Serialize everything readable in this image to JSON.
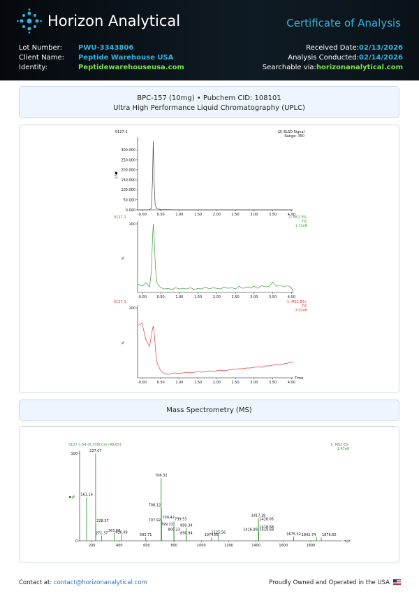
{
  "header": {
    "brand": "Horizon Analytical",
    "doc_title": "Certificate of Analysis"
  },
  "info": {
    "lot_label": "Lot Number:",
    "lot": "PWU-3343806",
    "client_label": "Client Name:",
    "client": "Peptide Warehouse USA",
    "identity_label": "Identity:",
    "identity": "Peptidewarehouseusa.com",
    "received_label": "Received Date:",
    "received": "02/13/2026",
    "conducted_label": "Analysis Conducted:",
    "conducted": "02/14/2026",
    "searchable_label": "Searchable via:",
    "searchable": "horizonanalytical.com"
  },
  "uplc": {
    "line1": "BPC-157 (10mg) • Pubchem CID: 108101",
    "line2": "Ultra High Performance Liquid Chromatography (UPLC)"
  },
  "ms_section": {
    "title": "Mass Spectrometry (MS)"
  },
  "footer": {
    "contact_label": "Contact at:",
    "email": "contact@horizonanalytical.com",
    "made": "Proudly Owned and Operated in the USA"
  },
  "chart_data": [
    {
      "type": "line",
      "title": "0127-1",
      "annotations": [
        "(2) ELSD Signal",
        "Range: 350"
      ],
      "y_label": "LSU",
      "color": "#444444",
      "x": [
        -0.1,
        0,
        0.1,
        0.2,
        0.25,
        0.28,
        0.3,
        0.32,
        0.35,
        0.4,
        0.5,
        1.0,
        1.5,
        2.0,
        2.5,
        3.0,
        3.5,
        4.0
      ],
      "values": [
        0,
        0,
        0,
        1,
        8,
        150,
        345,
        160,
        25,
        6,
        2,
        0,
        0,
        0,
        0,
        0,
        0,
        0
      ],
      "xlim": [
        -0.12,
        4.05
      ],
      "ylim": [
        0,
        350
      ],
      "xticks": [
        {
          "value": 0,
          "label": "-0.00"
        },
        {
          "value": 0.5,
          "label": "0.50"
        },
        {
          "value": 1,
          "label": "1.00"
        },
        {
          "value": 1.5,
          "label": "1.50"
        },
        {
          "value": 2,
          "label": "2.00"
        },
        {
          "value": 2.5,
          "label": "2.50"
        },
        {
          "value": 3,
          "label": "3.00"
        },
        {
          "value": 3.5,
          "label": "3.50"
        },
        {
          "value": 4,
          "label": "4.00"
        }
      ],
      "yticks": [
        {
          "value": 0,
          "label": "0.000"
        },
        {
          "value": 50,
          "label": "50.000"
        },
        {
          "value": 100,
          "label": "100.000"
        },
        {
          "value": 150,
          "label": "150.000"
        },
        {
          "value": 200,
          "label": "200.000"
        },
        {
          "value": 250,
          "label": "250.000"
        },
        {
          "value": 300,
          "label": "300.000"
        }
      ]
    },
    {
      "type": "line",
      "title": "0127-1",
      "annotations": [
        "2: MS2 ES-",
        "TIC",
        "1.11e8"
      ],
      "y_label": "%",
      "color": "#3a9a3a",
      "x": [
        -0.1,
        0,
        0.1,
        0.2,
        0.25,
        0.28,
        0.3,
        0.33,
        0.36,
        0.4,
        0.5,
        0.6,
        0.7,
        0.8,
        0.9,
        1,
        1.1,
        1.2,
        1.3,
        1.4,
        1.5,
        1.6,
        1.7,
        1.8,
        1.9,
        2,
        2.1,
        2.2,
        2.3,
        2.4,
        2.5,
        2.6,
        2.7,
        2.8,
        2.9,
        3,
        3.1,
        3.2,
        3.3,
        3.4,
        3.5,
        3.6,
        3.7,
        3.8,
        3.9,
        4,
        4.05
      ],
      "values": [
        12,
        9,
        14,
        8,
        30,
        78,
        100,
        72,
        35,
        14,
        7,
        5,
        6,
        4,
        7,
        5,
        6,
        5,
        7,
        4,
        6,
        5,
        8,
        5,
        7,
        6,
        5,
        8,
        6,
        7,
        5,
        9,
        6,
        8,
        7,
        9,
        6,
        10,
        8,
        9,
        15,
        9,
        11,
        8,
        10,
        7,
        0
      ],
      "xlim": [
        -0.12,
        4.05
      ],
      "ylim": [
        0,
        100
      ],
      "xticks": [
        {
          "value": 0,
          "label": "-0.00"
        },
        {
          "value": 0.5,
          "label": "0.50"
        },
        {
          "value": 1,
          "label": "1.00"
        },
        {
          "value": 1.5,
          "label": "1.50"
        },
        {
          "value": 2,
          "label": "2.00"
        },
        {
          "value": 2.5,
          "label": "2.50"
        },
        {
          "value": 3,
          "label": "3.00"
        },
        {
          "value": 3.5,
          "label": "3.50"
        },
        {
          "value": 4,
          "label": "4.00"
        }
      ],
      "yticks": [
        100
      ]
    },
    {
      "type": "line",
      "title": "0127-1",
      "annotations": [
        "1: MS2 ES+",
        "TIC",
        "3.02e8"
      ],
      "y_label": "%",
      "x_label": "Time",
      "color": "#e03a3a",
      "x": [
        -0.1,
        0,
        0.1,
        0.2,
        0.25,
        0.28,
        0.3,
        0.33,
        0.36,
        0.4,
        0.5,
        0.6,
        0.7,
        0.8,
        0.9,
        1,
        1.1,
        1.2,
        1.3,
        1.4,
        1.5,
        1.6,
        1.7,
        1.8,
        1.9,
        2,
        2.1,
        2.2,
        2.3,
        2.4,
        2.5,
        2.6,
        2.7,
        2.8,
        2.9,
        3,
        3.1,
        3.2,
        3.3,
        3.4,
        3.5,
        3.6,
        3.7,
        3.8,
        3.9,
        4,
        4.05
      ],
      "values": [
        75,
        78,
        55,
        45,
        60,
        70,
        74,
        62,
        40,
        22,
        10,
        6,
        5,
        6,
        7,
        6,
        7,
        8,
        7,
        8,
        9,
        8,
        9,
        10,
        9,
        10,
        11,
        10,
        11,
        12,
        12,
        13,
        13,
        14,
        14,
        15,
        16,
        15,
        17,
        17,
        18,
        19,
        19,
        20,
        21,
        22,
        22
      ],
      "xlim": [
        -0.12,
        4.05
      ],
      "ylim": [
        0,
        100
      ],
      "xticks": [
        {
          "value": 0,
          "label": "-0.00"
        },
        {
          "value": 0.5,
          "label": "0.50"
        },
        {
          "value": 1,
          "label": "1.00"
        },
        {
          "value": 1.5,
          "label": "1.50"
        },
        {
          "value": 2,
          "label": "2.00"
        },
        {
          "value": 2.5,
          "label": "2.50"
        },
        {
          "value": 3,
          "label": "3.00"
        },
        {
          "value": 3.5,
          "label": "3.50"
        },
        {
          "value": 4,
          "label": "4.00"
        }
      ],
      "yticks": [
        100
      ]
    },
    {
      "type": "spectrum",
      "title": "0127-1 54 (0.378) Cm (49:65)",
      "annotations": [
        "2: MS2 ES-",
        "1.47e6"
      ],
      "y_label": "%",
      "x_label": "m/z",
      "color": "#2e9a2e",
      "x": [
        161.16,
        227.07,
        228.37,
        271.37,
        363.08,
        416.09,
        593.71,
        706.32,
        707.92,
        708.12,
        709.42,
        799.23,
        799.53,
        800.23,
        890.34,
        890.94,
        1074.85,
        1125.56,
        1416.88,
        1417.38,
        1418.06,
        1418.68,
        1419.68,
        1675.52,
        1842.74,
        1876.65
      ],
      "values": [
        50,
        100,
        20,
        6,
        9,
        7,
        4,
        72,
        21,
        38,
        24,
        16,
        22,
        10,
        15,
        6,
        4,
        7,
        10,
        26,
        22,
        13,
        10,
        5,
        4,
        4
      ],
      "xlim": [
        110,
        2030
      ],
      "ylim": [
        0,
        100
      ],
      "xticks": [
        200,
        400,
        600,
        800,
        1000,
        1200,
        1400,
        1600,
        1800
      ],
      "yticks": [
        0,
        100
      ]
    }
  ]
}
